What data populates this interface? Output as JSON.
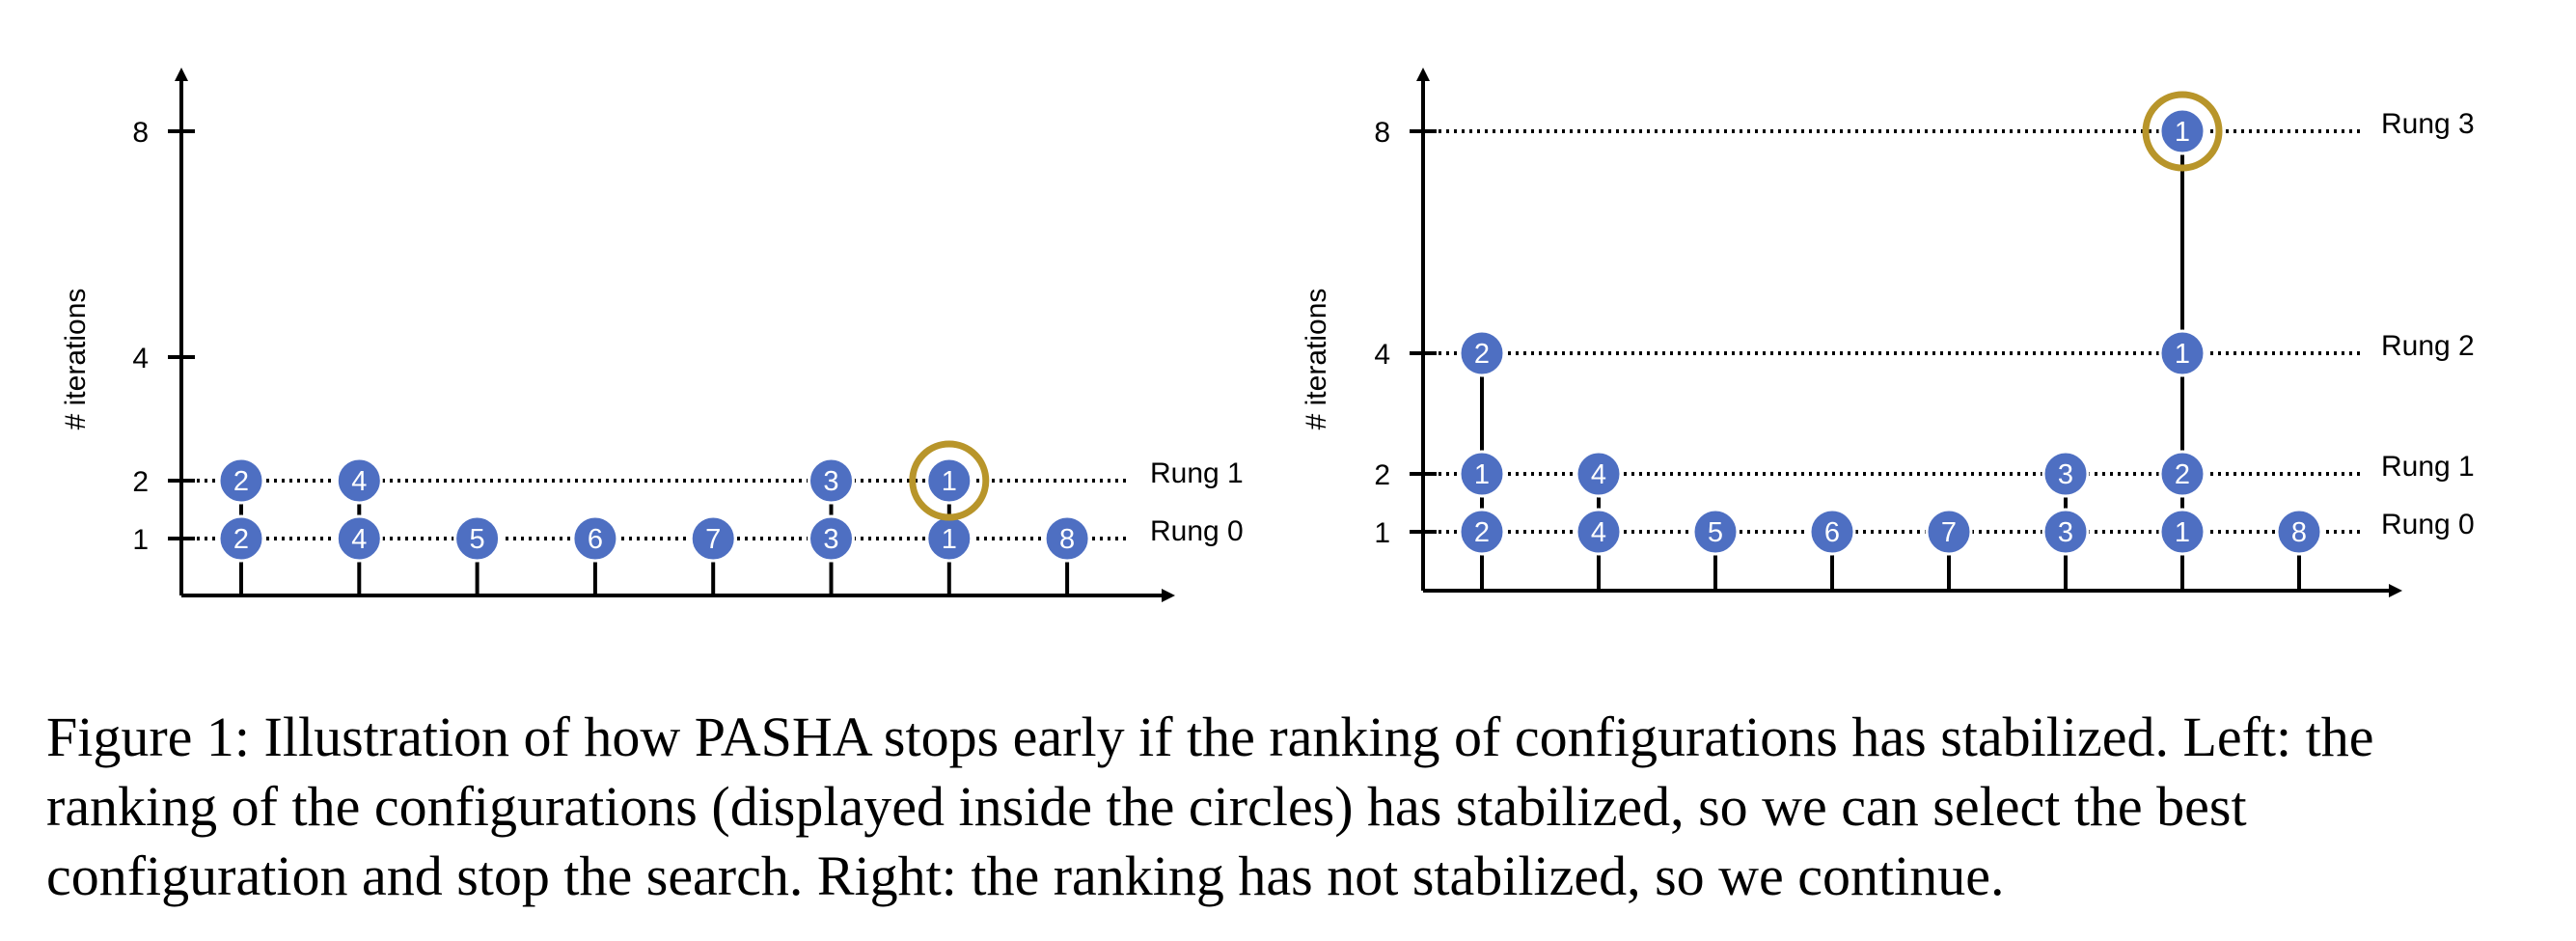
{
  "colors": {
    "node_fill": "#4e6fc2",
    "node_stroke": "#ffffff",
    "highlight": "#b8952a",
    "line": "#000000"
  },
  "panels": [
    {
      "id": "left",
      "ylabel": "# iterations",
      "y_ticks": [
        1,
        2,
        4,
        8
      ],
      "slots": 8,
      "rungs": [
        {
          "label": "Rung 0",
          "iterations": 1,
          "nodes": [
            {
              "slot": 1,
              "rank": "2"
            },
            {
              "slot": 2,
              "rank": "4"
            },
            {
              "slot": 3,
              "rank": "5"
            },
            {
              "slot": 4,
              "rank": "6"
            },
            {
              "slot": 5,
              "rank": "7"
            },
            {
              "slot": 6,
              "rank": "3"
            },
            {
              "slot": 7,
              "rank": "1"
            },
            {
              "slot": 8,
              "rank": "8"
            }
          ]
        },
        {
          "label": "Rung 1",
          "iterations": 2,
          "nodes": [
            {
              "slot": 1,
              "rank": "2"
            },
            {
              "slot": 2,
              "rank": "4"
            },
            {
              "slot": 6,
              "rank": "3"
            },
            {
              "slot": 7,
              "rank": "1",
              "highlighted": true
            }
          ]
        }
      ]
    },
    {
      "id": "right",
      "ylabel": "# iterations",
      "y_ticks": [
        1,
        2,
        4,
        8
      ],
      "slots": 8,
      "rungs": [
        {
          "label": "Rung 0",
          "iterations": 1,
          "nodes": [
            {
              "slot": 1,
              "rank": "2"
            },
            {
              "slot": 2,
              "rank": "4"
            },
            {
              "slot": 3,
              "rank": "5"
            },
            {
              "slot": 4,
              "rank": "6"
            },
            {
              "slot": 5,
              "rank": "7"
            },
            {
              "slot": 6,
              "rank": "3"
            },
            {
              "slot": 7,
              "rank": "1"
            },
            {
              "slot": 8,
              "rank": "8"
            }
          ]
        },
        {
          "label": "Rung 1",
          "iterations": 2,
          "nodes": [
            {
              "slot": 1,
              "rank": "1"
            },
            {
              "slot": 2,
              "rank": "4"
            },
            {
              "slot": 6,
              "rank": "3"
            },
            {
              "slot": 7,
              "rank": "2"
            }
          ]
        },
        {
          "label": "Rung 2",
          "iterations": 4,
          "nodes": [
            {
              "slot": 1,
              "rank": "2"
            },
            {
              "slot": 7,
              "rank": "1"
            }
          ]
        },
        {
          "label": "Rung 3",
          "iterations": 8,
          "nodes": [
            {
              "slot": 7,
              "rank": "1",
              "highlighted": true
            }
          ]
        }
      ]
    }
  ],
  "caption": "Figure 1: Illustration of how PASHA stops early if the ranking of configurations has stabilized. Left: the ranking of the configurations (displayed inside the circles) has stabilized, so we can select the best configuration and stop the search. Right: the ranking has not stabilized, so we continue."
}
